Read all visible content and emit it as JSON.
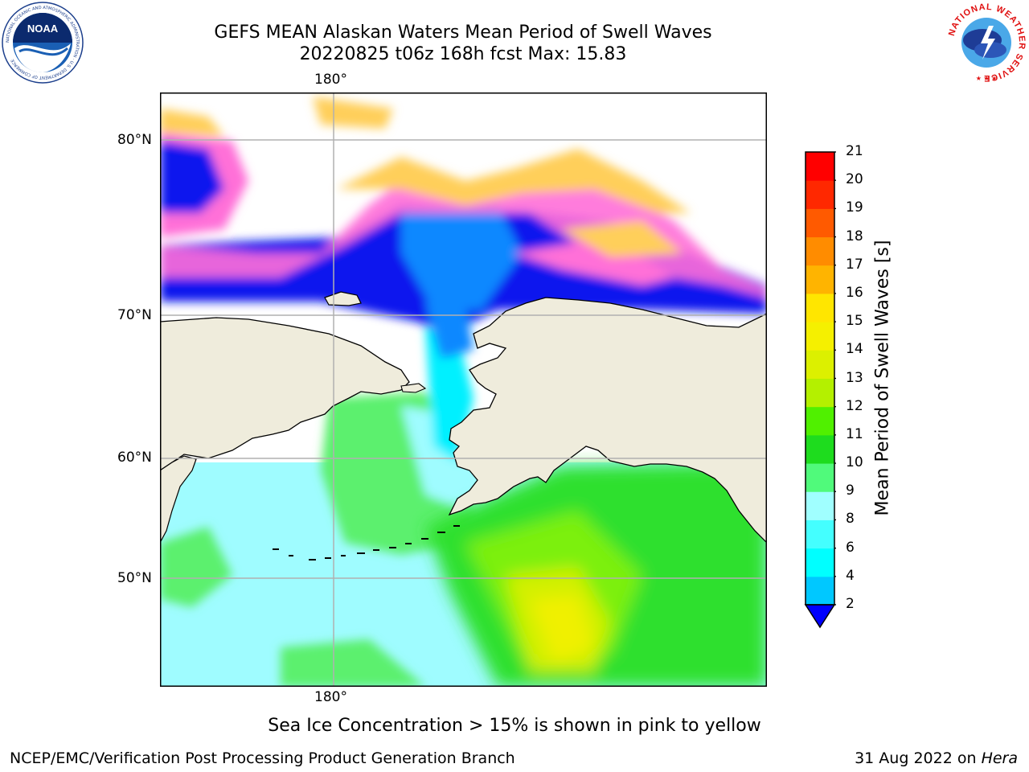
{
  "header": {
    "title": "GEFS MEAN Alaskan Waters Mean Period of Swell Waves",
    "subtitle": "20220825 t06z 168h fcst   Max: 15.83"
  },
  "logos": {
    "left": {
      "name": "noaa-logo",
      "text": "NOAA",
      "ring_text": "NATIONAL OCEANIC AND ATMOSPHERIC ADMINISTRATION · U.S. DEPARTMENT OF COMMERCE"
    },
    "right": {
      "name": "nws-logo",
      "ring_text": "NATIONAL WEATHER SERVICE"
    }
  },
  "map": {
    "lon_labels_top": [
      "180°"
    ],
    "lon_labels_bottom": [
      "180°"
    ],
    "lat_labels": [
      "80°N",
      "70°N",
      "60°N",
      "50°N"
    ],
    "colors": {
      "land": "#efecdc",
      "ice_pink": "#ff6fd8",
      "ice_yellow": "#ffcf5a",
      "deep_blue": "#0a12ee",
      "mid_blue": "#0a88ff",
      "cyan": "#00f0ff",
      "light_cyan": "#9ffcff",
      "green": "#2ee02e",
      "light_green": "#5cf06e",
      "yellow_green": "#d2f000"
    }
  },
  "colorbar": {
    "label": "Mean Period of Swell Waves [s]",
    "ticks": [
      "2",
      "4",
      "6",
      "8",
      "9",
      "10",
      "11",
      "12",
      "13",
      "14",
      "15",
      "16",
      "17",
      "18",
      "19",
      "20",
      "21"
    ],
    "colors": [
      "#0064ff",
      "#00c8ff",
      "#00ffff",
      "#44ffff",
      "#a0ffff",
      "#50fa7b",
      "#1edc1e",
      "#50f000",
      "#b4f000",
      "#dcf000",
      "#f5f000",
      "#ffe600",
      "#ffb400",
      "#ff8c00",
      "#ff5a00",
      "#ff2800",
      "#ff0000"
    ],
    "extend_color": "#0000ff"
  },
  "caption": "Sea Ice Concentration > 15% is shown in pink to yellow",
  "footer": {
    "left": "NCEP/EMC/Verification Post Processing Product Generation Branch",
    "right_date": "31 Aug 2022 on ",
    "right_host": "Hera"
  }
}
